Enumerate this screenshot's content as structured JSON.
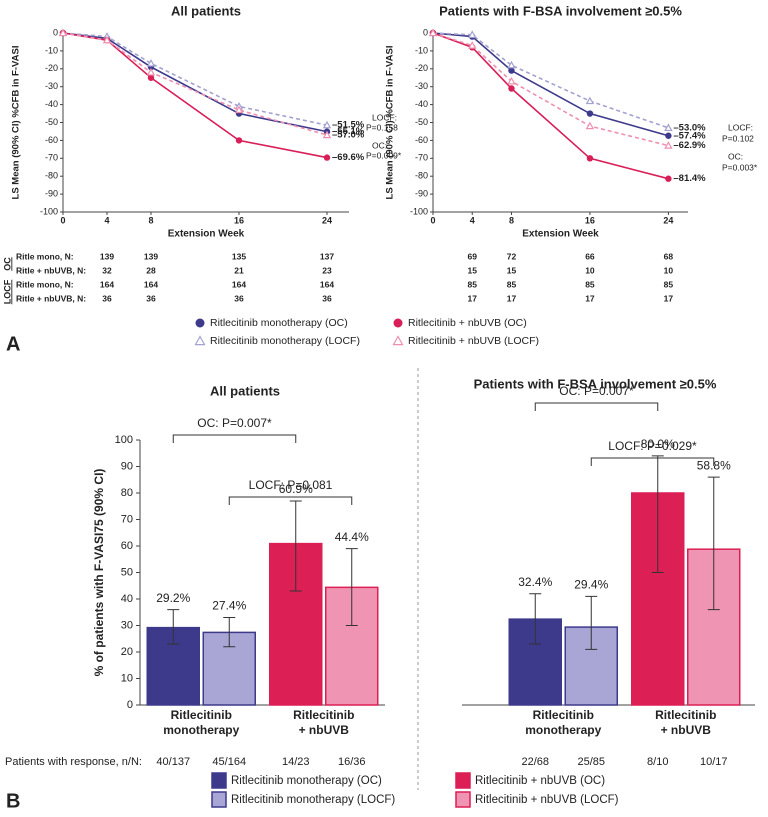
{
  "panel_labels": [
    "A",
    "B"
  ],
  "response_label": "Patients with response, n/N:",
  "chart_data": [
    {
      "type": "line",
      "title": "All patients",
      "x_label": "Extension Week",
      "y_label": "LS Mean (90% CI) %CFB in F-VASI",
      "x": [
        0,
        4,
        8,
        16,
        24
      ],
      "xlim": [
        0,
        26
      ],
      "xticks": [
        0,
        4,
        8,
        16,
        24
      ],
      "ylim": [
        -100,
        0
      ],
      "yticks": [
        0,
        -10,
        -20,
        -30,
        -40,
        -50,
        -60,
        -70,
        -80,
        -90,
        -100
      ],
      "series": [
        {
          "name": "Ritlecitinib monotherapy (OC)",
          "color": "#3d3a8c",
          "marker": "circle",
          "linestyle": "solid",
          "values": [
            0,
            -3,
            -19,
            -45,
            -55.1
          ],
          "value_labels": [
            null,
            null,
            null,
            null,
            "–55.1%"
          ]
        },
        {
          "name": "Ritlecitinib monotherapy (LOCF)",
          "color": "#a3a1d0",
          "marker": "triangle",
          "linestyle": "dashed",
          "values": [
            0,
            -2,
            -17,
            -41,
            -51.5
          ],
          "value_labels": [
            null,
            null,
            null,
            null,
            "–51.5%"
          ]
        },
        {
          "name": "Ritlecitinib + nbUVB (OC)",
          "color": "#d81f57",
          "marker": "circle",
          "linestyle": "solid",
          "values": [
            0,
            -4,
            -25,
            -60,
            -69.6
          ],
          "value_labels": [
            null,
            null,
            null,
            null,
            "–69.6%"
          ]
        },
        {
          "name": "Ritlecitinib + nbUVB (LOCF)",
          "color": "#ee8fb0",
          "marker": "triangle",
          "linestyle": "dashed",
          "values": [
            0,
            -4,
            -22,
            -43,
            -57.0
          ],
          "value_labels": [
            null,
            null,
            null,
            null,
            "–57.0%"
          ]
        }
      ],
      "annotations": [
        "LOCF:",
        "P=0.158",
        "OC:",
        "P=0.009*"
      ],
      "n_table": {
        "groups": [
          {
            "label": "OC",
            "rows": [
              {
                "label": "Ritle mono, N:",
                "color": "#3d3a8c",
                "values": [
                  139,
                  139,
                  135,
                  137
                ]
              },
              {
                "label": "Ritle + nbUVB, N:",
                "color": "#d81f57",
                "values": [
                  32,
                  28,
                  21,
                  23
                ]
              }
            ]
          },
          {
            "label": "LOCF",
            "rows": [
              {
                "label": "Ritle mono, N:",
                "color": "#a3a1d0",
                "values": [
                  164,
                  164,
                  164,
                  164
                ]
              },
              {
                "label": "Ritle + nbUVB, N:",
                "color": "#ee8fb0",
                "values": [
                  36,
                  36,
                  36,
                  36
                ]
              }
            ]
          }
        ]
      }
    },
    {
      "type": "line",
      "title": "Patients with F-BSA involvement ≥0.5%",
      "x_label": "Extension Week",
      "y_label": "LS Mean (90% CI) %CFB in F-VASI",
      "x": [
        0,
        4,
        8,
        16,
        24
      ],
      "xlim": [
        0,
        26
      ],
      "xticks": [
        0,
        4,
        8,
        16,
        24
      ],
      "ylim": [
        -100,
        0
      ],
      "yticks": [
        0,
        -10,
        -20,
        -30,
        -40,
        -50,
        -60,
        -70,
        -80,
        -90,
        -100
      ],
      "series": [
        {
          "color": "#3d3a8c",
          "marker": "circle",
          "linestyle": "solid",
          "values": [
            0,
            -2,
            -21,
            -45,
            -57.4
          ],
          "value_labels": [
            null,
            null,
            null,
            null,
            "–57.4%"
          ]
        },
        {
          "color": "#a3a1d0",
          "marker": "triangle",
          "linestyle": "dashed",
          "values": [
            0,
            -1,
            -18,
            -38,
            -53.0
          ],
          "value_labels": [
            null,
            null,
            null,
            null,
            "–53.0%"
          ]
        },
        {
          "color": "#d81f57",
          "marker": "circle",
          "linestyle": "solid",
          "values": [
            0,
            -8,
            -31,
            -70,
            -81.4
          ],
          "value_labels": [
            null,
            null,
            null,
            null,
            "–81.4%"
          ]
        },
        {
          "color": "#ee8fb0",
          "marker": "triangle",
          "linestyle": "dashed",
          "values": [
            0,
            -7,
            -27,
            -52,
            -62.9
          ],
          "value_labels": [
            null,
            null,
            null,
            null,
            "–62.9%"
          ]
        }
      ],
      "annotations": [
        "LOCF:",
        "P=0.102",
        "OC:",
        "P=0.003*"
      ],
      "n_table": {
        "groups": [
          {
            "rows": [
              {
                "color": "#3d3a8c",
                "values": [
                  69,
                  72,
                  66,
                  68
                ]
              },
              {
                "color": "#d81f57",
                "values": [
                  15,
                  15,
                  10,
                  10
                ]
              }
            ]
          },
          {
            "rows": [
              {
                "color": "#a3a1d0",
                "values": [
                  85,
                  85,
                  85,
                  85
                ]
              },
              {
                "color": "#ee8fb0",
                "values": [
                  17,
                  17,
                  17,
                  17
                ]
              }
            ]
          }
        ]
      }
    },
    {
      "type": "bar",
      "title": "All patients",
      "y_label": "% of patients with F-VASI75 (90% CI)",
      "categories": [
        "Ritlecitinib monotherapy",
        "Ritlecitinib + nbUVB"
      ],
      "ylim": [
        0,
        100
      ],
      "yticks": [
        0,
        10,
        20,
        30,
        40,
        50,
        60,
        70,
        80,
        90,
        100
      ],
      "series": [
        {
          "name": "Ritlecitinib monotherapy (OC)",
          "color": "#3d3a8c",
          "edgecolor": "#3d3a8c",
          "values": [
            29.2,
            null
          ],
          "value_labels": [
            "29.2%",
            null
          ],
          "ci_low": [
            23,
            null
          ],
          "ci_high": [
            36,
            null
          ],
          "responses": [
            "40/137",
            null
          ]
        },
        {
          "name": "Ritlecitinib monotherapy (LOCF)",
          "color": "#a9a6d6",
          "edgecolor": "#3d3a8c",
          "values": [
            27.4,
            null
          ],
          "value_labels": [
            "27.4%",
            null
          ],
          "ci_low": [
            22,
            null
          ],
          "ci_high": [
            33,
            null
          ],
          "responses": [
            "45/164",
            null
          ]
        },
        {
          "name": "Ritlecitinib + nbUVB (OC)",
          "color": "#dc1f55",
          "edgecolor": "#dc1f55",
          "values": [
            null,
            60.9
          ],
          "value_labels": [
            null,
            "60.9%"
          ],
          "ci_low": [
            null,
            43
          ],
          "ci_high": [
            null,
            77
          ],
          "responses": [
            null,
            "14/23"
          ]
        },
        {
          "name": "Ritlecitinib + nbUVB (LOCF)",
          "color": "#ef95b3",
          "edgecolor": "#dc1f55",
          "values": [
            null,
            44.4
          ],
          "value_labels": [
            null,
            "44.4%"
          ],
          "ci_low": [
            null,
            30
          ],
          "ci_high": [
            null,
            59
          ],
          "responses": [
            null,
            "16/36"
          ]
        }
      ],
      "brackets": [
        "OC: P=0.007*",
        "LOCF: P=0.081"
      ]
    },
    {
      "type": "bar",
      "title": "Patients with F-BSA involvement ≥0.5%",
      "categories": [
        "Ritlecitinib monotherapy",
        "Ritlecitinib + nbUVB"
      ],
      "ylim": [
        0,
        100
      ],
      "series": [
        {
          "color": "#3d3a8c",
          "edgecolor": "#3d3a8c",
          "values": [
            32.4,
            null
          ],
          "value_labels": [
            "32.4%",
            null
          ],
          "ci_low": [
            23,
            null
          ],
          "ci_high": [
            42,
            null
          ],
          "responses": [
            "22/68",
            null
          ]
        },
        {
          "color": "#a9a6d6",
          "edgecolor": "#3d3a8c",
          "values": [
            29.4,
            null
          ],
          "value_labels": [
            "29.4%",
            null
          ],
          "ci_low": [
            21,
            null
          ],
          "ci_high": [
            41,
            null
          ],
          "responses": [
            "25/85",
            null
          ]
        },
        {
          "color": "#dc1f55",
          "edgecolor": "#dc1f55",
          "values": [
            null,
            80.0
          ],
          "value_labels": [
            null,
            "80.0%"
          ],
          "ci_low": [
            null,
            50
          ],
          "ci_high": [
            null,
            94
          ],
          "responses": [
            null,
            "8/10"
          ]
        },
        {
          "color": "#ef95b3",
          "edgecolor": "#dc1f55",
          "values": [
            null,
            58.8
          ],
          "value_labels": [
            null,
            "58.8%"
          ],
          "ci_low": [
            null,
            36
          ],
          "ci_high": [
            null,
            86
          ],
          "responses": [
            null,
            "10/17"
          ]
        }
      ],
      "brackets": [
        "OC: P=0.007*",
        "LOCF: P=0.029*"
      ]
    }
  ]
}
